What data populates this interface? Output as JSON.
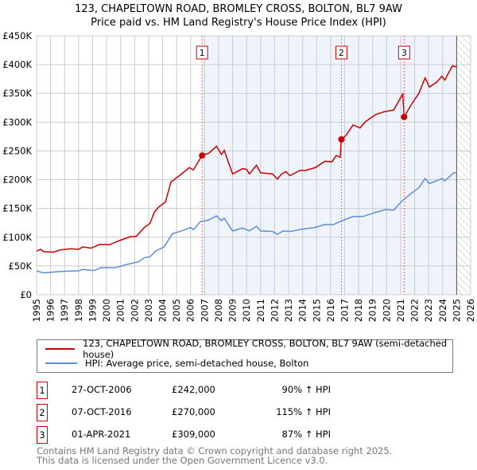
{
  "title": "123, CHAPELTOWN ROAD, BROMLEY CROSS, BOLTON, BL7 9AW",
  "subtitle": "Price paid vs. HM Land Registry's House Price Index (HPI)",
  "chart_data": {
    "type": "line",
    "xlim": [
      1995,
      2026
    ],
    "ylim": [
      0,
      450000
    ],
    "yticks": [
      {
        "v": 0,
        "l": "£0"
      },
      {
        "v": 50000,
        "l": "£50K"
      },
      {
        "v": 100000,
        "l": "£100K"
      },
      {
        "v": 150000,
        "l": "£150K"
      },
      {
        "v": 200000,
        "l": "£200K"
      },
      {
        "v": 250000,
        "l": "£250K"
      },
      {
        "v": 300000,
        "l": "£300K"
      },
      {
        "v": 350000,
        "l": "£350K"
      },
      {
        "v": 400000,
        "l": "£400K"
      },
      {
        "v": 450000,
        "l": "£450K"
      }
    ],
    "xticks": [
      "1995",
      "1996",
      "1997",
      "1998",
      "1999",
      "2000",
      "2001",
      "2002",
      "2003",
      "2004",
      "2005",
      "2006",
      "2007",
      "2008",
      "2009",
      "2010",
      "2011",
      "2012",
      "2013",
      "2014",
      "2015",
      "2016",
      "2017",
      "2018",
      "2019",
      "2020",
      "2021",
      "2022",
      "2023",
      "2024",
      "2025",
      "2026"
    ],
    "grid": true,
    "shaded_from": 2006.82,
    "forecast_hatch_from": 2025.0,
    "series": [
      {
        "name": "123, CHAPELTOWN ROAD, BROMLEY CROSS, BOLTON, BL7 9AW (semi-detached house)",
        "color": "#cc0000",
        "x": [
          1995,
          1995.3,
          1995.5,
          1996.2,
          1996.7,
          1997.5,
          1998,
          1998.3,
          1998.9,
          1999.5,
          2000.2,
          2000.9,
          2001.7,
          2002.1,
          2002.7,
          2003.1,
          2003.4,
          2003.7,
          2004.2,
          2004.6,
          2005.2,
          2005.9,
          2006.2,
          2006.82,
          2007.3,
          2007.85,
          2008.2,
          2008.4,
          2009.0,
          2009.7,
          2010,
          2010.2,
          2010.7,
          2011,
          2011.85,
          2012.2,
          2012.5,
          2012.8,
          2013.1,
          2013.8,
          2014.2,
          2014.9,
          2015.6,
          2016.1,
          2016.4,
          2016.68,
          2016.77,
          2017.1,
          2017.6,
          2018.1,
          2018.5,
          2019.2,
          2019.8,
          2020.5,
          2020.9,
          2021.15,
          2021.25,
          2021.8,
          2022.3,
          2022.75,
          2023.05,
          2023.6,
          2023.95,
          2024.15,
          2024.7,
          2025.0
        ],
        "y": [
          76000,
          79000,
          75000,
          74000,
          78000,
          80000,
          79000,
          83000,
          81000,
          87500,
          87000,
          94000,
          101000,
          101000,
          117000,
          124000,
          143000,
          152000,
          161000,
          196000,
          207000,
          221000,
          217000,
          242000,
          246000,
          258000,
          244000,
          251000,
          210000,
          219000,
          218000,
          210000,
          225000,
          212000,
          210000,
          201000,
          210000,
          214000,
          207000,
          216000,
          216000,
          221000,
          232000,
          231000,
          242000,
          239000,
          270000,
          277000,
          295000,
          290000,
          301000,
          313000,
          318000,
          321000,
          338000,
          349000,
          309000,
          332000,
          350000,
          377000,
          361000,
          370000,
          380000,
          373000,
          398000,
          396000
        ]
      },
      {
        "name": "HPI: Average price, semi-detached house, Bolton",
        "color": "#5b8fd4",
        "x": [
          1995,
          1995.5,
          1996.7,
          1998,
          1998.3,
          1999.1,
          1999.6,
          2000.6,
          2001.5,
          2002.3,
          2002.7,
          2003.1,
          2003.5,
          2004.1,
          2004.7,
          2005.3,
          2006,
          2006.2,
          2006.7,
          2007.3,
          2007.85,
          2008.2,
          2008.4,
          2009.0,
          2009.7,
          2010.2,
          2010.7,
          2011,
          2011.85,
          2012.2,
          2012.6,
          2013.1,
          2014,
          2014.9,
          2015.6,
          2016.2,
          2016.75,
          2017.6,
          2018.3,
          2019.2,
          2019.9,
          2020.5,
          2021.1,
          2021.8,
          2022.3,
          2022.75,
          2023.05,
          2023.95,
          2024.15,
          2024.8,
          2025.0
        ],
        "y": [
          41500,
          38000,
          40500,
          41500,
          44000,
          42000,
          47000,
          47000,
          53000,
          57500,
          64500,
          66000,
          76000,
          83000,
          106000,
          110500,
          117000,
          113000,
          127000,
          130000,
          137000,
          129000,
          133000,
          111000,
          116000,
          111000,
          119000,
          111000,
          110000,
          105000,
          111000,
          110000,
          114000,
          117000,
          122000,
          122000,
          128000,
          136000,
          136000,
          143000,
          148000,
          147000,
          163000,
          177000,
          186000,
          202000,
          193000,
          202000,
          198000,
          212000,
          212000
        ]
      }
    ],
    "sales": [
      {
        "label": "1",
        "x": 2006.82,
        "y": 242000,
        "date": "27-OCT-2006",
        "price": "£242,000",
        "hpi": "90% ↑ HPI"
      },
      {
        "label": "2",
        "x": 2016.77,
        "y": 270000,
        "date": "07-OCT-2016",
        "price": "£270,000",
        "hpi": "115% ↑ HPI"
      },
      {
        "label": "3",
        "x": 2021.25,
        "y": 309000,
        "date": "01-APR-2021",
        "price": "£309,000",
        "hpi": "87% ↑ HPI"
      }
    ]
  },
  "legend": [
    "123, CHAPELTOWN ROAD, BROMLEY CROSS, BOLTON, BL7 9AW (semi-detached house)",
    "HPI: Average price, semi-detached house, Bolton"
  ],
  "footer": [
    "Contains HM Land Registry data © Crown copyright and database right 2025.",
    "This data is licensed under the Open Government Licence v3.0."
  ]
}
